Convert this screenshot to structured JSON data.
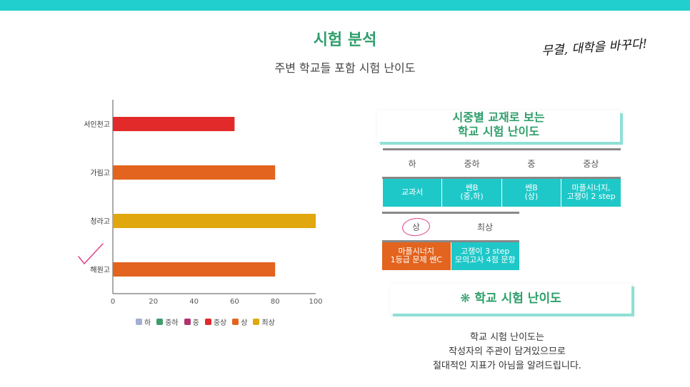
{
  "header": {
    "title": "시험 분석",
    "subtitle": "주변 학교들 포함 시험 난이도",
    "slogan": "무결, 대학을 바꾸다!"
  },
  "colors": {
    "accent": "#22cfcf",
    "title_green": "#2e9e6a",
    "teal_cell": "#1fc8c8",
    "orange_cell": "#e2641e"
  },
  "chart_data": {
    "type": "bar",
    "orientation": "horizontal",
    "categories": [
      "서인천고",
      "가림고",
      "청라고",
      "해원고"
    ],
    "values": [
      60,
      80,
      100,
      80
    ],
    "levels": [
      "중상",
      "상",
      "최상",
      "상"
    ],
    "xlim": [
      0,
      100
    ],
    "xticks": [
      0,
      20,
      40,
      60,
      80,
      100
    ],
    "legend": [
      {
        "name": "하",
        "color": "#a3aed6"
      },
      {
        "name": "중하",
        "color": "#3f9d6c"
      },
      {
        "name": "중",
        "color": "#b0336f"
      },
      {
        "name": "중상",
        "color": "#e22a2a"
      },
      {
        "name": "상",
        "color": "#e2641e"
      },
      {
        "name": "최상",
        "color": "#e0a80e"
      }
    ],
    "legend_position": "bottom",
    "annotation": "checkmark next to 해원고"
  },
  "card_top": {
    "line1": "시중별 교재로 보는",
    "line2": "학교 시험 난이도"
  },
  "table1": {
    "headers": [
      "하",
      "중하",
      "중",
      "중상"
    ],
    "cells": [
      {
        "l1": "교과서",
        "l2": ""
      },
      {
        "l1": "쎈B",
        "l2": "(중,하)"
      },
      {
        "l1": "쎈B",
        "l2": "(상)"
      },
      {
        "l1": "마플시너지,",
        "l2": "고쟁이 2 step"
      }
    ]
  },
  "table2": {
    "headers": [
      "상",
      "최상"
    ],
    "cells": [
      {
        "l1": "마플시너지",
        "l2": "1등급 문제 쎈C"
      },
      {
        "l1": "고쟁이 3 step",
        "l2": "모의고사 4점 문항"
      }
    ]
  },
  "card_bottom": {
    "label": "❋ 학교 시험 난이도"
  },
  "note": {
    "line1": "학교 시험 난이도는",
    "line2": "작성자의 주관이 담겨있으므로",
    "line3": "절대적인 지표가 아님을 알려드립니다."
  }
}
